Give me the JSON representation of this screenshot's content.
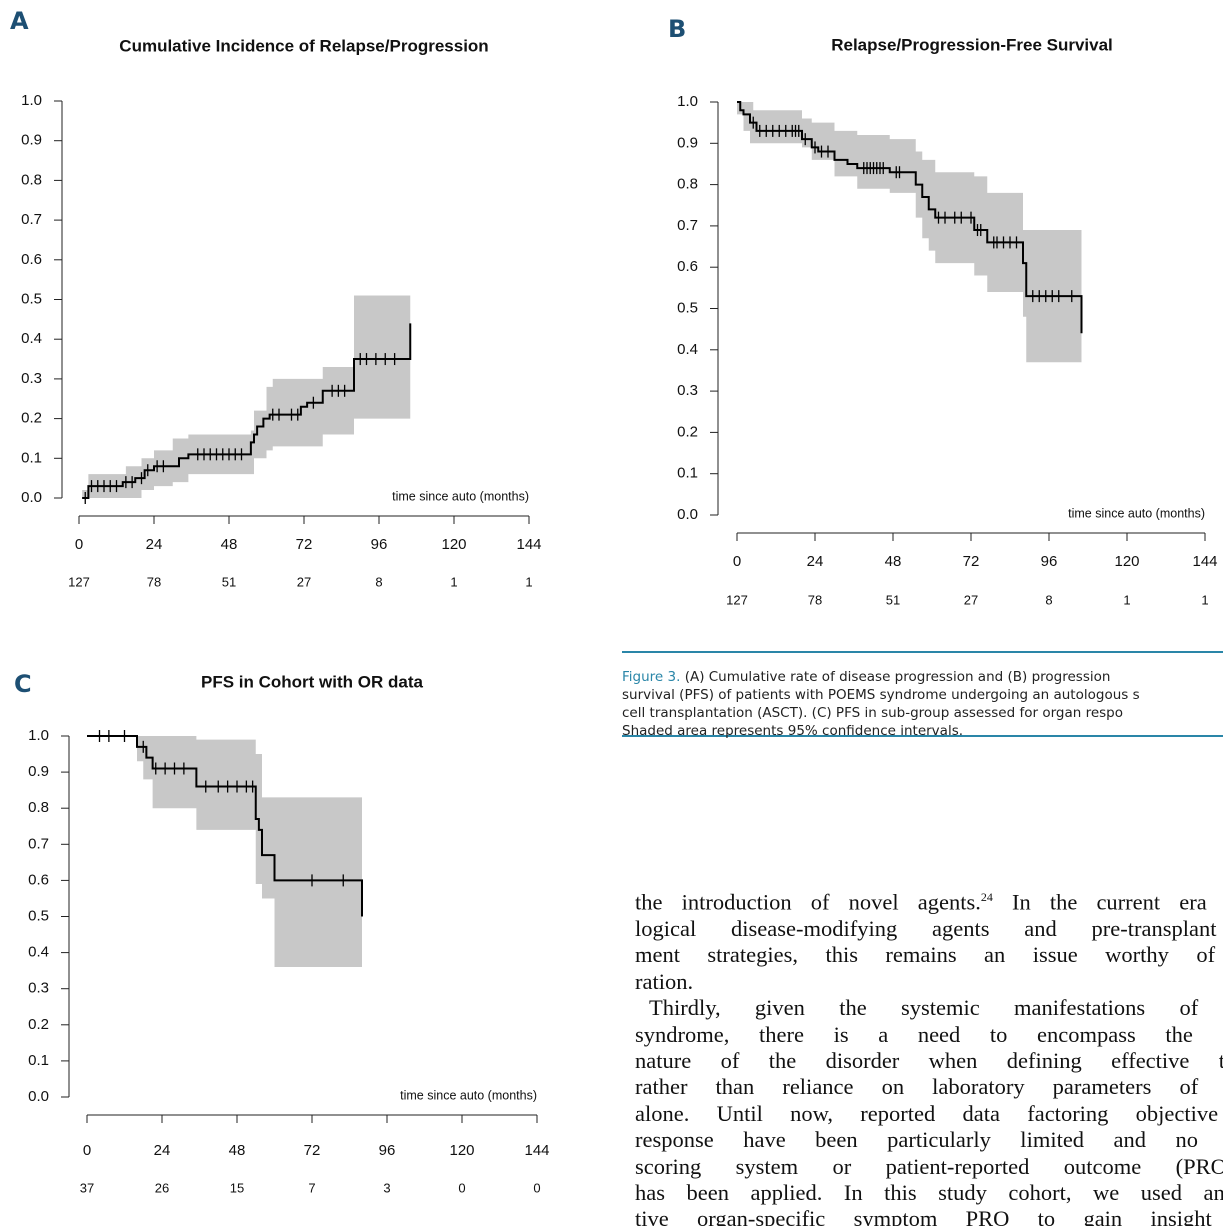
{
  "chart_data": [
    {
      "type": "line",
      "step": true,
      "label": "A",
      "title": "Cumulative Incidence of Relapse/Progression",
      "x_label": "time since auto (months)",
      "x": [
        1,
        3,
        14,
        18,
        21,
        24,
        32,
        35,
        55,
        56,
        57,
        59,
        61,
        71,
        73,
        78,
        88,
        106
      ],
      "values": [
        0,
        0.03,
        0.04,
        0.05,
        0.07,
        0.08,
        0.1,
        0.11,
        0.14,
        0.16,
        0.18,
        0.2,
        0.21,
        0.23,
        0.24,
        0.27,
        0.35,
        0.44
      ],
      "color": "#000000",
      "ci_x": [
        1,
        3,
        15,
        20,
        24,
        30,
        35,
        55,
        56,
        60,
        62,
        70,
        78,
        88,
        106
      ],
      "ci_upper": [
        0.02,
        0.06,
        0.08,
        0.1,
        0.12,
        0.15,
        0.16,
        0.17,
        0.22,
        0.28,
        0.3,
        0.3,
        0.33,
        0.51,
        0.51
      ],
      "ci_lower": [
        0,
        0,
        0,
        0.02,
        0.03,
        0.04,
        0.06,
        0.06,
        0.1,
        0.12,
        0.13,
        0.13,
        0.16,
        0.2,
        0.2
      ],
      "ci_color": "#c8c8c8",
      "censored_x": [
        2,
        4,
        6,
        8,
        10,
        12,
        15,
        17,
        20,
        22,
        25,
        27,
        38,
        40,
        42,
        44,
        46,
        48,
        50,
        52,
        62,
        64,
        68,
        70,
        75,
        81,
        83,
        85,
        90,
        92,
        95,
        98,
        101
      ],
      "at_risk": [
        127,
        78,
        51,
        27,
        8,
        1,
        1
      ],
      "xlim": [
        0,
        144
      ],
      "xticks": [
        0,
        24,
        48,
        72,
        96,
        120,
        144
      ],
      "ylim": [
        0,
        1
      ],
      "yticks": [
        {
          "value": 0,
          "label": "0.0"
        },
        0.1,
        0.2,
        0.3,
        0.4,
        0.5,
        0.6,
        0.7,
        0.8,
        0.9,
        {
          "value": 1,
          "label": "1.0"
        }
      ]
    },
    {
      "type": "line",
      "step": true,
      "label": "B",
      "title": "Relapse/Progression-Free Survival",
      "x_label": "time since auto (months)",
      "x": [
        0,
        1,
        2,
        4,
        6,
        20,
        23,
        25,
        30,
        34,
        37,
        47,
        55,
        57,
        59,
        61,
        73,
        77,
        88,
        89,
        106
      ],
      "values": [
        1.0,
        0.98,
        0.97,
        0.95,
        0.93,
        0.91,
        0.89,
        0.88,
        0.86,
        0.85,
        0.84,
        0.83,
        0.8,
        0.77,
        0.74,
        0.72,
        0.69,
        0.66,
        0.61,
        0.53,
        0.44
      ],
      "color": "#000000",
      "ci_x": [
        0,
        2,
        4,
        5,
        20,
        23,
        30,
        37,
        47,
        55,
        57,
        59,
        61,
        73,
        77,
        88,
        89,
        106
      ],
      "ci_upper": [
        1.0,
        1.0,
        1.0,
        0.98,
        0.96,
        0.95,
        0.93,
        0.92,
        0.91,
        0.88,
        0.86,
        0.86,
        0.83,
        0.82,
        0.78,
        0.69,
        0.69,
        0.69
      ],
      "ci_lower": [
        0.97,
        0.93,
        0.9,
        0.9,
        0.89,
        0.86,
        0.82,
        0.79,
        0.78,
        0.72,
        0.67,
        0.64,
        0.61,
        0.58,
        0.54,
        0.48,
        0.37,
        0.37
      ],
      "ci_color": "#c8c8c8",
      "censored_x": [
        5,
        7,
        9,
        11,
        13,
        15,
        17,
        18,
        19,
        21,
        24,
        26,
        28,
        39,
        40,
        41,
        42,
        43,
        44,
        45,
        49,
        50,
        62,
        64,
        67,
        69,
        72,
        74,
        75,
        79,
        80,
        82,
        84,
        86,
        91,
        93,
        95,
        97,
        99,
        103
      ],
      "at_risk": [
        127,
        78,
        51,
        27,
        8,
        1,
        1
      ],
      "xlim": [
        0,
        144
      ],
      "xticks": [
        0,
        24,
        48,
        72,
        96,
        120,
        144
      ],
      "ylim": [
        0,
        1
      ],
      "yticks": [
        {
          "value": 0,
          "label": "0.0"
        },
        0.1,
        0.2,
        0.3,
        0.4,
        0.5,
        0.6,
        0.7,
        0.8,
        0.9,
        {
          "value": 1,
          "label": "1.0"
        }
      ]
    },
    {
      "type": "line",
      "step": true,
      "label": "C",
      "title": "PFS in Cohort with OR data",
      "x_label": "time since auto (months)",
      "x": [
        0,
        16,
        19,
        21,
        35,
        54,
        55,
        56,
        60,
        88
      ],
      "values": [
        1.0,
        0.97,
        0.94,
        0.91,
        0.86,
        0.77,
        0.74,
        0.67,
        0.6,
        0.5
      ],
      "color": "#000000",
      "ci_x": [
        0,
        16,
        18,
        21,
        35,
        54,
        56,
        60,
        88
      ],
      "ci_upper": [
        1.0,
        1.0,
        1.0,
        1.0,
        0.99,
        0.95,
        0.83,
        0.83,
        0.83
      ],
      "ci_lower": [
        1.0,
        0.93,
        0.88,
        0.8,
        0.74,
        0.59,
        0.55,
        0.36,
        0.36
      ],
      "ci_color": "#c8c8c8",
      "censored_x": [
        4,
        7,
        12,
        18,
        22,
        25,
        28,
        31,
        38,
        42,
        45,
        48,
        51,
        53,
        72,
        82
      ],
      "at_risk": [
        37,
        26,
        15,
        7,
        3,
        0,
        0
      ],
      "xlim": [
        0,
        144
      ],
      "xticks": [
        0,
        24,
        48,
        72,
        96,
        120,
        144
      ],
      "ylim": [
        0,
        1
      ],
      "yticks": [
        {
          "value": 0,
          "label": "0.0"
        },
        0.1,
        0.2,
        0.3,
        0.4,
        0.5,
        0.6,
        0.7,
        0.8,
        0.9,
        {
          "value": 1,
          "label": "1.0"
        }
      ]
    }
  ],
  "caption": {
    "label": "Figure 3.",
    "lines": [
      "(A) Cumulative rate of disease progression and (B) progression",
      "survival (PFS) of patients with POEMS syndrome undergoing an autologous s",
      "cell transplantation (ASCT). (C) PFS in sub-group assessed for organ respo",
      "Shaded area represents 95% confidence intervals."
    ]
  },
  "body": {
    "first_line": [
      "the introduction of novel agents.",
      "24",
      " In the current era of b"
    ],
    "lines": [
      "logical disease-modifying agents and pre-transplant tre",
      "ment strategies, this remains an issue worthy of exp",
      "ration.",
      "Thirdly, given the systemic manifestations of POE",
      "syndrome, there is a need to encompass the syster",
      "nature of the disorder when defining effective therap",
      "rather than reliance on laboratory parameters of respo",
      "alone. Until now, reported data factoring objective org",
      "response have been particularly limited and no unifo",
      "scoring system or patient-reported outcome (PRO) t",
      "has been applied. In this study cohort, we used an obj",
      "tive organ-specific symptom PRO to gain insight into"
    ]
  }
}
